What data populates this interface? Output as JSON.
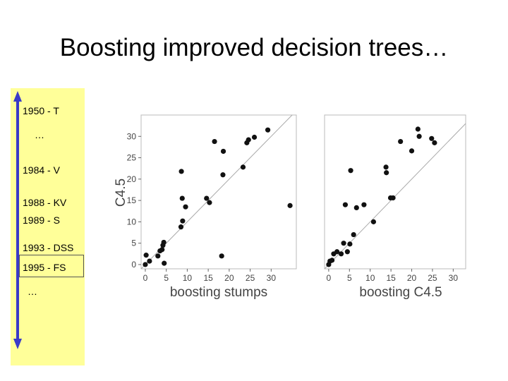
{
  "slide": {
    "title": "Boosting improved decision trees…"
  },
  "timeline": {
    "items": [
      {
        "label": "1950 - T"
      },
      {
        "label": "…"
      },
      {
        "label": "1984 - V"
      },
      {
        "label": "1988 - KV"
      },
      {
        "label": "1989 - S"
      },
      {
        "label": "1993 - DSS"
      },
      {
        "label": "1995 - FS"
      },
      {
        "label": "…"
      }
    ],
    "highlighted_index": 6
  },
  "chart_data": [
    {
      "type": "scatter",
      "xlabel": "boosting stumps",
      "ylabel": "C4.5",
      "xlim": [
        -1,
        36
      ],
      "ylim": [
        -1,
        35
      ],
      "xticks": [
        0,
        5,
        10,
        15,
        20,
        25,
        30
      ],
      "yticks": [
        0,
        5,
        10,
        15,
        20,
        25,
        30
      ],
      "diagonal": true,
      "points": [
        [
          0,
          0
        ],
        [
          0.2,
          2.2
        ],
        [
          1,
          0.8
        ],
        [
          3,
          2
        ],
        [
          3.5,
          3.2
        ],
        [
          4,
          3.5
        ],
        [
          4.2,
          4.5
        ],
        [
          4.4,
          5.2
        ],
        [
          4.5,
          0.3
        ],
        [
          8.5,
          8.8
        ],
        [
          8.9,
          10.2
        ],
        [
          8.8,
          15.5
        ],
        [
          8.6,
          21.8
        ],
        [
          9.6,
          13.5
        ],
        [
          14.6,
          15.5
        ],
        [
          15.3,
          14.5
        ],
        [
          16.5,
          28.8
        ],
        [
          18.2,
          2
        ],
        [
          18.6,
          26.5
        ],
        [
          18.5,
          21
        ],
        [
          23.3,
          22.8
        ],
        [
          24.2,
          28.5
        ],
        [
          24.6,
          29.2
        ],
        [
          26,
          29.8
        ],
        [
          29.2,
          31.5
        ],
        [
          34.5,
          13.8
        ]
      ]
    },
    {
      "type": "scatter",
      "xlabel": "boosting C4.5",
      "ylabel": "",
      "xlim": [
        -1,
        33
      ],
      "ylim": [
        -1,
        35
      ],
      "xticks": [
        0,
        5,
        10,
        15,
        20,
        25,
        30
      ],
      "yticks": [],
      "diagonal": true,
      "points": [
        [
          0,
          0
        ],
        [
          0.3,
          0.8
        ],
        [
          0.8,
          1
        ],
        [
          1.2,
          2.5
        ],
        [
          2,
          3
        ],
        [
          3,
          2.5
        ],
        [
          3.6,
          5
        ],
        [
          4,
          14
        ],
        [
          4.5,
          3
        ],
        [
          5.3,
          22
        ],
        [
          5.1,
          4.8
        ],
        [
          6,
          7
        ],
        [
          6.7,
          13.3
        ],
        [
          8.5,
          14
        ],
        [
          10.8,
          10
        ],
        [
          13.8,
          22.8
        ],
        [
          13.9,
          21.5
        ],
        [
          14.9,
          15.6
        ],
        [
          15.5,
          15.6
        ],
        [
          17.3,
          28.8
        ],
        [
          20,
          26.6
        ],
        [
          21.5,
          31.7
        ],
        [
          21.8,
          30
        ],
        [
          24.8,
          29.5
        ],
        [
          25.5,
          28.5
        ]
      ]
    }
  ]
}
